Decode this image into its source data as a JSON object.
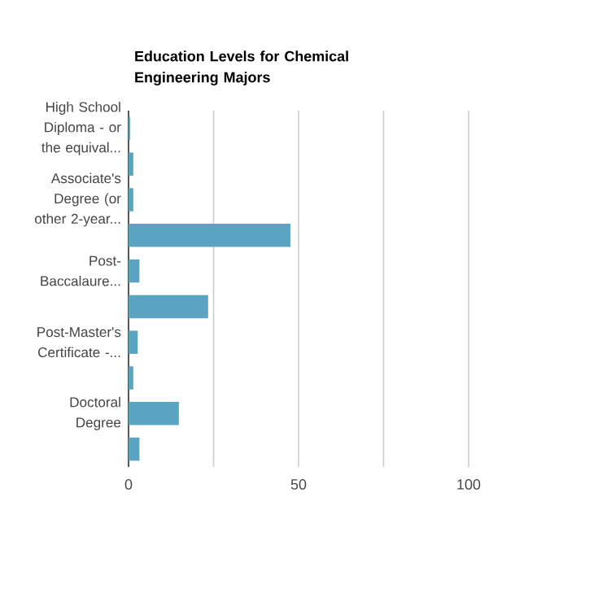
{
  "chart_data": {
    "type": "bar",
    "orientation": "horizontal",
    "title": "Education Levels for Chemical Engineering Majors",
    "categories": [
      "High School Diploma - or the equival...",
      null,
      "Associate's Degree (or other 2-year...",
      null,
      "Post-Baccalaure...",
      null,
      "Post-Master's Certificate -...",
      null,
      "Doctoral Degree",
      null
    ],
    "values": [
      0.5,
      1.4,
      1.4,
      47.6,
      3.2,
      23.4,
      2.7,
      1.4,
      14.8,
      3.2
    ],
    "color": "#5ba3c2",
    "xlim": [
      0,
      100
    ],
    "xticks": [
      0,
      {
        "value": 25,
        "label": null
      },
      50,
      {
        "value": 75,
        "label": null
      },
      100
    ],
    "grid": "x"
  }
}
